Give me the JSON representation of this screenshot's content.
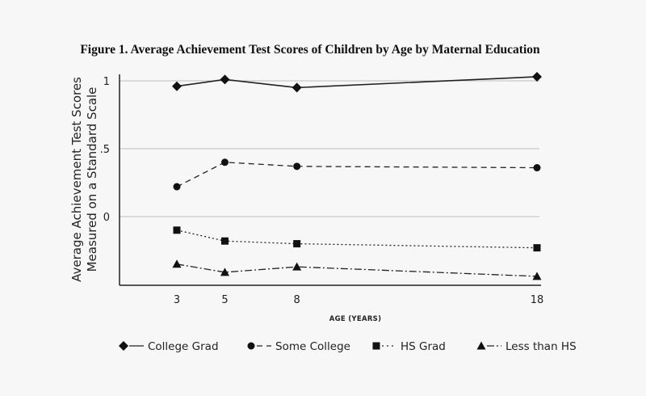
{
  "chart_data": {
    "type": "line",
    "title": "Figure 1. Average Achievement Test Scores of Children by Age by Maternal Education",
    "xlabel": "AGE (YEARS)",
    "ylabel_lines": [
      "Average Achievement Test Scores",
      "Measured on a Standard Scale"
    ],
    "x": [
      3,
      5,
      8,
      18
    ],
    "x_tick_labels": [
      "3",
      "5",
      "8",
      "18"
    ],
    "xlim": [
      0,
      18
    ],
    "ylim": [
      -0.5,
      1.05
    ],
    "y_ticks": [
      1,
      0.5,
      0
    ],
    "y_tick_labels": [
      "1",
      ".5",
      "0"
    ],
    "grid": "horizontal",
    "legend_position": "bottom",
    "series": [
      {
        "name": "College Grad",
        "marker": "diamond",
        "dash": "solid",
        "values": [
          0.96,
          1.01,
          0.95,
          1.03
        ]
      },
      {
        "name": "Some College",
        "marker": "circle",
        "dash": "dashed",
        "values": [
          0.22,
          0.4,
          0.37,
          0.36
        ]
      },
      {
        "name": "HS Grad",
        "marker": "square",
        "dash": "dotted",
        "values": [
          -0.1,
          -0.18,
          -0.2,
          -0.23
        ]
      },
      {
        "name": "Less than HS",
        "marker": "triangle",
        "dash": "dashdot",
        "values": [
          -0.35,
          -0.41,
          -0.37,
          -0.44
        ]
      }
    ]
  }
}
